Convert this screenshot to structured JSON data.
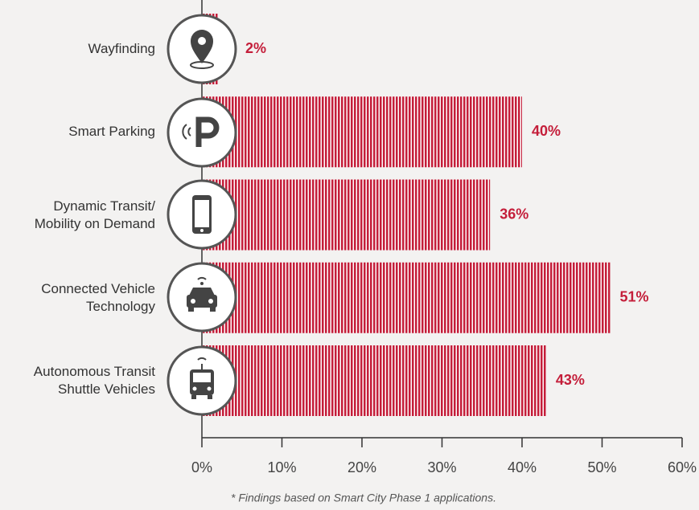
{
  "chart_data": {
    "type": "bar",
    "orientation": "horizontal",
    "categories": [
      "Wayfinding",
      "Smart Parking",
      "Dynamic Transit/\nMobility on Demand",
      "Connected Vehicle\nTechnology",
      "Autonomous Transit\nShuttle Vehicles"
    ],
    "values": [
      2,
      40,
      36,
      51,
      43
    ],
    "value_labels": [
      "2%",
      "40%",
      "36%",
      "51%",
      "43%"
    ],
    "color": "#c41e3a",
    "xlim": [
      0,
      60
    ],
    "xticks": [
      {
        "value": 0,
        "label": "0%"
      },
      {
        "value": 10,
        "label": "10%"
      },
      {
        "value": 20,
        "label": "20%"
      },
      {
        "value": 30,
        "label": "30%"
      },
      {
        "value": 40,
        "label": "40%"
      },
      {
        "value": 50,
        "label": "50%"
      },
      {
        "value": 60,
        "label": "60%"
      }
    ],
    "footnote": "* Findings based on Smart City Phase 1 applications."
  }
}
